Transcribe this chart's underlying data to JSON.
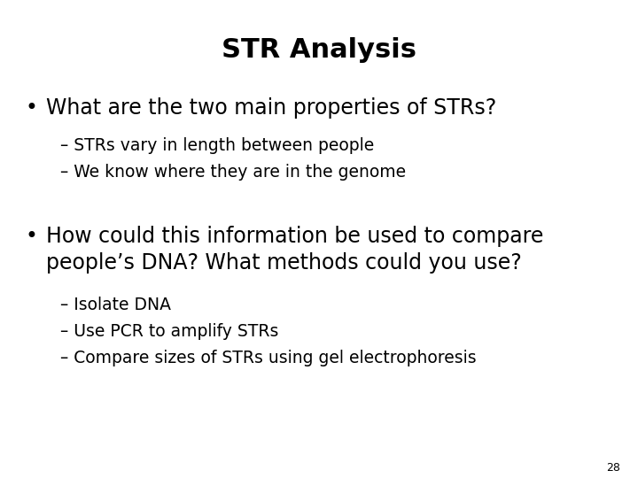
{
  "title": "STR Analysis",
  "title_fontsize": 22,
  "title_fontweight": "bold",
  "background_color": "#ffffff",
  "text_color": "#000000",
  "bullet1": "What are the two main properties of STRs?",
  "bullet1_fontsize": 17,
  "sub1a": "– STRs vary in length between people",
  "sub1b": "– We know where they are in the genome",
  "sub_fontsize1": 13.5,
  "bullet2_line1": "How could this information be used to compare",
  "bullet2_line2": "people’s DNA? What methods could you use?",
  "bullet2_fontsize": 17,
  "sub2a": "– Isolate DNA",
  "sub2b": "– Use PCR to amplify STRs",
  "sub2c": "– Compare sizes of STRs using gel electrophoresis",
  "sub_fontsize2": 13.5,
  "page_number": "28",
  "page_number_fontsize": 9,
  "bullet_dot_fontsize": 17
}
